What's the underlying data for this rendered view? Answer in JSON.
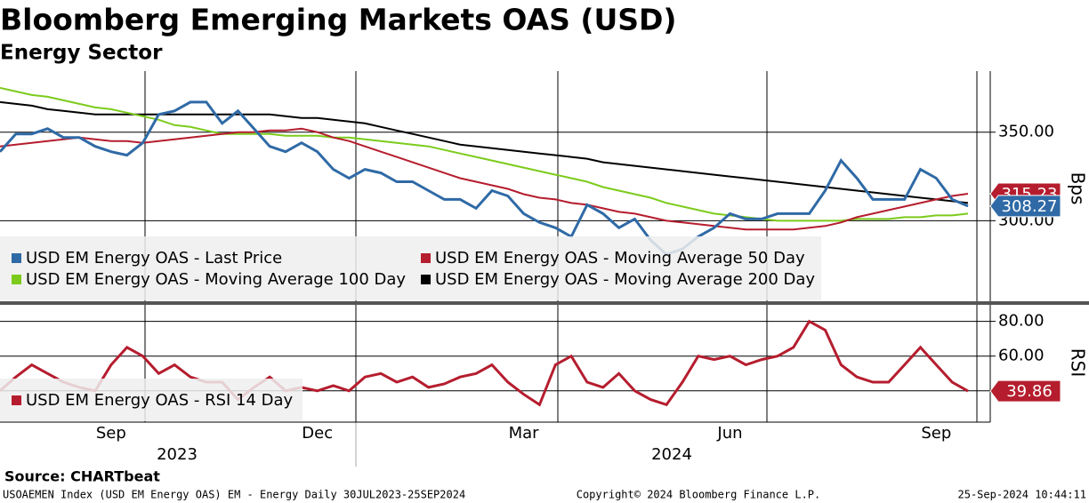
{
  "chart_data": [
    {
      "type": "line",
      "title": "Bloomberg Emerging Markets OAS (USD)",
      "subtitle": "Energy Sector",
      "y_label": "Bps",
      "ylim": [
        255,
        382
      ],
      "yticks": [
        {
          "value": 300,
          "label": "300.00"
        },
        {
          "value": 350,
          "label": "350.00"
        }
      ],
      "grid": true,
      "series": [
        {
          "name": "USD EM Energy OAS - Last Price",
          "color": "#2f6aa6",
          "last_label": "308.27",
          "values": [
            339,
            349,
            349,
            352,
            347,
            347,
            342,
            339,
            337,
            344,
            360,
            362,
            367,
            367,
            355,
            362,
            352,
            342,
            339,
            344,
            339,
            329,
            324,
            329,
            327,
            322,
            322,
            317,
            312,
            312,
            307,
            317,
            314,
            304,
            299,
            296,
            291,
            309,
            304,
            296,
            301,
            289,
            281,
            284,
            291,
            296,
            304,
            301,
            301,
            304,
            304,
            304,
            317,
            334,
            324,
            312,
            312,
            312,
            329,
            324,
            312,
            308.27
          ]
        },
        {
          "name": "USD EM Energy OAS - Moving Average 50 Day",
          "color": "#b51d2e",
          "last_label": "315.23",
          "values": [
            342,
            343,
            344,
            345,
            346,
            347,
            346,
            345,
            345,
            344,
            345,
            346,
            347,
            348,
            349,
            350,
            350,
            351,
            351,
            352,
            350,
            347,
            345,
            342,
            339,
            336,
            333,
            330,
            327,
            324,
            322,
            320,
            318,
            315,
            313,
            312,
            310,
            309,
            307,
            305,
            304,
            302,
            300,
            299,
            298,
            297,
            296,
            295,
            295,
            295,
            295,
            296,
            297,
            299,
            302,
            304,
            306,
            308,
            310,
            312,
            314,
            315.23
          ]
        },
        {
          "name": "USD EM Energy OAS - Moving Average 100 Day",
          "color": "#7ccb1c",
          "values": [
            375,
            373,
            371,
            370,
            368,
            366,
            364,
            363,
            361,
            359,
            357,
            354,
            353,
            351,
            349,
            349,
            349,
            349,
            348,
            348,
            348,
            347,
            347,
            346,
            345,
            344,
            343,
            342,
            340,
            338,
            336,
            334,
            332,
            330,
            328,
            326,
            324,
            322,
            319,
            317,
            315,
            313,
            310,
            308,
            306,
            304,
            303,
            302,
            301,
            300,
            300,
            300,
            300,
            300,
            301,
            301,
            301,
            302,
            302,
            303,
            303,
            304
          ]
        },
        {
          "name": "USD EM Energy OAS - Moving Average 200 Day",
          "color": "#000000",
          "values": [
            367,
            366,
            365,
            363,
            362,
            361,
            360,
            360,
            360,
            360,
            360,
            360,
            360,
            360,
            360,
            360,
            360,
            360,
            359,
            358,
            358,
            357,
            356,
            355,
            353,
            351,
            349,
            347,
            345,
            343,
            342,
            341,
            340,
            339,
            338,
            337,
            336,
            335,
            333,
            332,
            331,
            330,
            329,
            328,
            327,
            326,
            325,
            324,
            323,
            322,
            321,
            320,
            319,
            318,
            317,
            316,
            315,
            314,
            313,
            312,
            311,
            310
          ]
        }
      ]
    },
    {
      "type": "line",
      "y_label": "RSI",
      "ylim": [
        22,
        89
      ],
      "yticks": [
        {
          "value": 40,
          "label": "40.00"
        },
        {
          "value": 60,
          "label": "60.00"
        },
        {
          "value": 80,
          "label": "80.00"
        }
      ],
      "grid": true,
      "categories": [
        null,
        null,
        null,
        null,
        null,
        null,
        null,
        "Sep",
        null,
        null,
        null,
        null,
        null,
        null,
        null,
        null,
        null,
        null,
        null,
        null,
        "Dec",
        null,
        null,
        null,
        null,
        null,
        null,
        null,
        null,
        null,
        null,
        null,
        null,
        "Mar",
        null,
        null,
        null,
        null,
        null,
        null,
        null,
        null,
        null,
        null,
        null,
        null,
        "Jun",
        null,
        null,
        null,
        null,
        null,
        null,
        null,
        null,
        null,
        null,
        null,
        null,
        "Sep",
        null,
        null
      ],
      "x_group_labels": [
        "2023",
        "2024"
      ],
      "series": [
        {
          "name": "USD EM Energy OAS - RSI 14 Day",
          "color": "#b51d2e",
          "last_label": "39.86",
          "values": [
            40,
            48,
            55,
            50,
            45,
            42,
            40,
            55,
            65,
            60,
            50,
            55,
            48,
            45,
            45,
            35,
            42,
            48,
            40,
            42,
            40,
            43,
            40,
            48,
            50,
            45,
            48,
            42,
            44,
            48,
            50,
            55,
            45,
            38,
            32,
            55,
            60,
            45,
            42,
            50,
            40,
            35,
            32,
            45,
            60,
            58,
            60,
            55,
            58,
            60,
            65,
            80,
            75,
            55,
            48,
            45,
            45,
            55,
            65,
            55,
            45,
            39.86
          ]
        }
      ]
    }
  ],
  "footer": {
    "source": "Source: CHARTbeat",
    "left": "USOAEMEN Index (USD EM Energy OAS) EM - Energy  Daily 30JUL2023-25SEP2024",
    "center": "Copyright© 2024 Bloomberg Finance L.P.",
    "right": "25-Sep-2024 10:44:11"
  }
}
